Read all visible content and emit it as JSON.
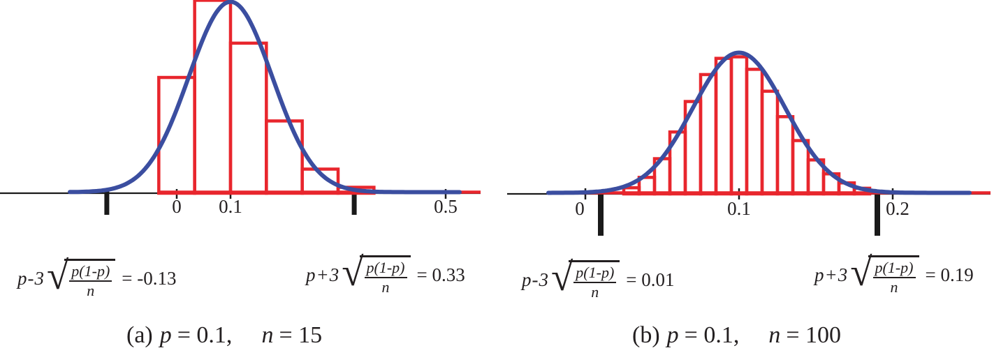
{
  "figure": {
    "description_visible_text_only": "Two binomial sampling-distribution histograms with normal curve overlays",
    "colors": {
      "histogram": "#e8262d",
      "curve": "#3b4ea0",
      "axis": "#1a1a1a",
      "text": "#231f20"
    },
    "radical_sign": "√"
  },
  "chart_data": [
    {
      "type": "bar",
      "title": "(a) p = 0.1, n = 15",
      "p": 0.1,
      "n": 15,
      "xlim": [
        -0.33,
        0.57
      ],
      "grid": false,
      "x_tick_values": [
        0,
        0.1,
        0.5
      ],
      "x_tick_labels": [
        "0",
        "0.1",
        "0.5"
      ],
      "marker_values": [
        -0.13,
        0.33
      ],
      "bar_width": 0.06667,
      "categories": [
        0,
        0.06667,
        0.13333,
        0.2,
        0.26667,
        0.33333,
        0.4
      ],
      "values": [
        0.20589,
        0.34315,
        0.2669,
        0.12851,
        0.04284,
        0.01047,
        0.00194
      ],
      "curve": {
        "type": "normal",
        "mean": 0.1,
        "sd": 0.0775
      },
      "caption": {
        "label": "(a)",
        "p_var": "p",
        "p_eq": "= 0.1,",
        "n_var": "n",
        "n_eq": "= 15"
      },
      "formulas": {
        "lower": {
          "prefix": "p-3",
          "num": "p(1-p)",
          "den": "n",
          "result": "= -0.13"
        },
        "upper": {
          "prefix": "p+3",
          "num": "p(1-p)",
          "den": "n",
          "result": "= 0.33"
        }
      }
    },
    {
      "type": "bar",
      "title": "(b) p = 0.1, n = 100",
      "p": 0.1,
      "n": 100,
      "xlim": [
        -0.05,
        0.26
      ],
      "grid": false,
      "x_tick_values": [
        0,
        0.1,
        0.2
      ],
      "x_tick_labels": [
        "0",
        "0.1",
        "0.2"
      ],
      "marker_values": [
        0.01,
        0.19
      ],
      "bar_width": 0.01,
      "categories": [
        0.02,
        0.03,
        0.04,
        0.05,
        0.06,
        0.07,
        0.08,
        0.09,
        0.1,
        0.11,
        0.12,
        0.13,
        0.14,
        0.15,
        0.16,
        0.17,
        0.18,
        0.19,
        0.2
      ],
      "values": [
        0.00162,
        0.00589,
        0.01587,
        0.03387,
        0.05958,
        0.08889,
        0.11482,
        0.13042,
        0.13187,
        0.11988,
        0.0988,
        0.0743,
        0.0513,
        0.03268,
        0.01929,
        0.01059,
        0.00543,
        0.0026,
        0.00117
      ],
      "curve": {
        "type": "normal",
        "mean": 0.1,
        "sd": 0.03
      },
      "caption": {
        "label": "(b)",
        "p_var": "p",
        "p_eq": "= 0.1,",
        "n_var": "n",
        "n_eq": "= 100"
      },
      "formulas": {
        "lower": {
          "prefix": "p-3",
          "num": "p(1-p)",
          "den": "n",
          "result": "= 0.01"
        },
        "upper": {
          "prefix": "p+3",
          "num": "p(1-p)",
          "den": "n",
          "result": "= 0.19"
        }
      }
    }
  ]
}
